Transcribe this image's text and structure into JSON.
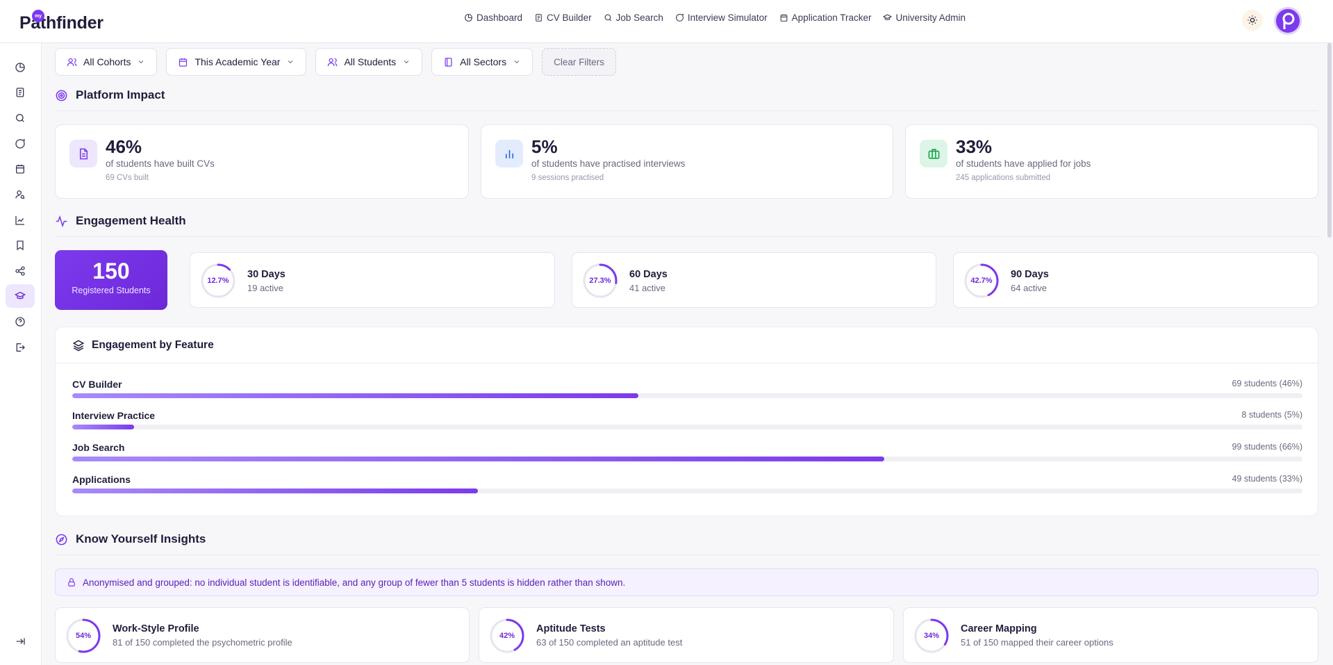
{
  "app": {
    "logo_text": "Pathfinder",
    "logo_badge": "my"
  },
  "nav": [
    {
      "label": "Dashboard",
      "icon": "dashboard-icon"
    },
    {
      "label": "CV Builder",
      "icon": "document-icon"
    },
    {
      "label": "Job Search",
      "icon": "search-icon"
    },
    {
      "label": "Interview Simulator",
      "icon": "chat-icon"
    },
    {
      "label": "Application Tracker",
      "icon": "calendar-icon"
    },
    {
      "label": "University Admin",
      "icon": "graduation-cap-icon"
    }
  ],
  "filters": {
    "cohorts": "All Cohorts",
    "year": "This Academic Year",
    "students": "All Students",
    "sectors": "All Sectors",
    "clear": "Clear Filters"
  },
  "impact": {
    "title": "Platform Impact",
    "cards": [
      {
        "value": "46%",
        "desc": "of students have built CVs",
        "sub": "69 CVs built",
        "color": "#7c3aed",
        "bg": "#ede6fd"
      },
      {
        "value": "5%",
        "desc": "of students have practised interviews",
        "sub": "9 sessions practised",
        "color": "#2563eb",
        "bg": "#e3ecfd"
      },
      {
        "value": "33%",
        "desc": "of students have applied for jobs",
        "sub": "245 applications submitted",
        "color": "#16a34a",
        "bg": "#dcf5e6"
      }
    ]
  },
  "health": {
    "title": "Engagement Health",
    "registered": {
      "value": "150",
      "label": "Registered Students"
    },
    "cards": [
      {
        "pct": "12.7%",
        "fraction": 0.127,
        "title": "30 Days",
        "sub": "19 active"
      },
      {
        "pct": "27.3%",
        "fraction": 0.273,
        "title": "60 Days",
        "sub": "41 active"
      },
      {
        "pct": "42.7%",
        "fraction": 0.427,
        "title": "90 Days",
        "sub": "64 active"
      }
    ]
  },
  "features": {
    "title": "Engagement by Feature",
    "rows": [
      {
        "label": "CV Builder",
        "value": "69 students (46%)",
        "fraction": 0.46
      },
      {
        "label": "Interview Practice",
        "value": "8 students (5%)",
        "fraction": 0.05
      },
      {
        "label": "Job Search",
        "value": "99 students (66%)",
        "fraction": 0.66
      },
      {
        "label": "Applications",
        "value": "49 students (33%)",
        "fraction": 0.33
      }
    ]
  },
  "insights": {
    "title": "Know Yourself Insights",
    "notice": "Anonymised and grouped: no individual student is identifiable, and any group of fewer than 5 students is hidden rather than shown.",
    "cards": [
      {
        "pct": "54%",
        "fraction": 0.54,
        "title": "Work-Style Profile",
        "sub": "81 of 150 completed the psychometric profile"
      },
      {
        "pct": "42%",
        "fraction": 0.42,
        "title": "Aptitude Tests",
        "sub": "63 of 150 completed an aptitude test"
      },
      {
        "pct": "34%",
        "fraction": 0.34,
        "title": "Career Mapping",
        "sub": "51 of 150 mapped their career options"
      }
    ]
  },
  "colors": {
    "accent": "#7c3aed",
    "accent_dark": "#6d28d9"
  }
}
